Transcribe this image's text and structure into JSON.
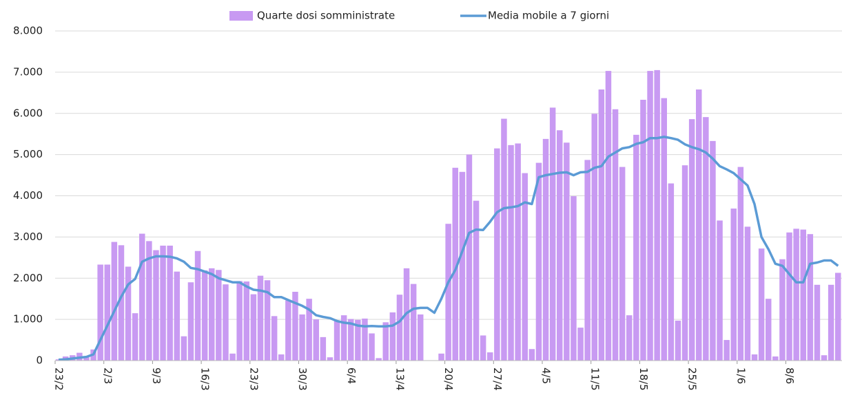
{
  "chart_data": {
    "type": "bar",
    "categories": [
      "23/2",
      null,
      null,
      null,
      null,
      null,
      null,
      "2/3",
      null,
      null,
      null,
      null,
      null,
      null,
      "9/3",
      null,
      null,
      null,
      null,
      null,
      null,
      "16/3",
      null,
      null,
      null,
      null,
      null,
      null,
      "23/3",
      null,
      null,
      null,
      null,
      null,
      null,
      "30/3",
      null,
      null,
      null,
      null,
      null,
      null,
      "6/4",
      null,
      null,
      null,
      null,
      null,
      null,
      "13/4",
      null,
      null,
      null,
      null,
      null,
      null,
      "20/4",
      null,
      null,
      null,
      null,
      null,
      null,
      "27/4",
      null,
      null,
      null,
      null,
      null,
      null,
      "4/5",
      null,
      null,
      null,
      null,
      null,
      null,
      "11/5",
      null,
      null,
      null,
      null,
      null,
      null,
      "18/5",
      null,
      null,
      null,
      null,
      null,
      null,
      "25/5",
      null,
      null,
      null,
      null,
      null,
      null,
      "1/6",
      null,
      null,
      null,
      null,
      null,
      null,
      "8/6",
      null,
      null,
      null,
      null,
      null,
      null,
      null
    ],
    "series": [
      {
        "name": "Quarte dosi somministrate",
        "type": "bar",
        "color": "#c89af2",
        "values": [
          30,
          100,
          130,
          190,
          100,
          270,
          2330,
          2330,
          2880,
          2800,
          2280,
          1150,
          3080,
          2900,
          2680,
          2790,
          2790,
          2160,
          590,
          1900,
          2660,
          2190,
          2240,
          2200,
          1850,
          170,
          1930,
          1920,
          1610,
          2060,
          1950,
          1080,
          150,
          1460,
          1670,
          1120,
          1500,
          1000,
          570,
          80,
          960,
          1100,
          1010,
          990,
          1020,
          660,
          60,
          930,
          1170,
          1600,
          2240,
          1860,
          1120,
          0,
          0,
          170,
          3320,
          4680,
          4580,
          5000,
          3880,
          610,
          200,
          5150,
          5870,
          5230,
          5270,
          4550,
          280,
          4800,
          5380,
          6140,
          5590,
          5290,
          3990,
          800,
          4870,
          5990,
          6580,
          7030,
          6100,
          4700,
          1100,
          5480,
          6330,
          7030,
          7050,
          6370,
          4300,
          970,
          4740,
          5860,
          6580,
          5910,
          5330,
          3400,
          500,
          3690,
          4700,
          3250,
          150,
          2720,
          1500,
          100,
          2460,
          3110,
          3200,
          3180,
          3070,
          1840,
          130,
          1840,
          2130
        ]
      },
      {
        "name": "Media mobile a 7 giorni",
        "type": "line",
        "color": "#5b9bd5",
        "values": [
          20,
          30,
          50,
          70,
          90,
          150,
          500,
          850,
          1200,
          1550,
          1850,
          1980,
          2400,
          2480,
          2530,
          2530,
          2520,
          2480,
          2400,
          2250,
          2220,
          2160,
          2100,
          2000,
          1950,
          1900,
          1900,
          1800,
          1720,
          1700,
          1660,
          1540,
          1540,
          1470,
          1400,
          1330,
          1240,
          1100,
          1060,
          1030,
          960,
          920,
          900,
          850,
          830,
          840,
          830,
          830,
          850,
          950,
          1150,
          1260,
          1280,
          1280,
          1160,
          1500,
          1900,
          2200,
          2650,
          3100,
          3180,
          3170,
          3370,
          3600,
          3700,
          3720,
          3750,
          3840,
          3800,
          4450,
          4500,
          4530,
          4560,
          4570,
          4500,
          4570,
          4580,
          4680,
          4720,
          4950,
          5050,
          5150,
          5180,
          5260,
          5300,
          5400,
          5400,
          5430,
          5400,
          5360,
          5250,
          5180,
          5130,
          5050,
          4900,
          4720,
          4640,
          4550,
          4400,
          4250,
          3800,
          3000,
          2700,
          2350,
          2300,
          2100,
          1900,
          1900,
          2350,
          2380,
          2430,
          2430,
          2300
        ]
      }
    ],
    "ylim": [
      0,
      8000
    ],
    "yticks": [
      0,
      {
        "value": 1000,
        "label": "1.000"
      },
      {
        "value": 2000,
        "label": "2.000"
      },
      {
        "value": 3000,
        "label": "3.000"
      },
      {
        "value": 4000,
        "label": "4.000"
      },
      {
        "value": 5000,
        "label": "5.000"
      },
      {
        "value": 6000,
        "label": "6.000"
      },
      {
        "value": 7000,
        "label": "7.000"
      },
      {
        "value": 8000,
        "label": "8.000"
      }
    ],
    "grid": true,
    "legend": "top"
  }
}
